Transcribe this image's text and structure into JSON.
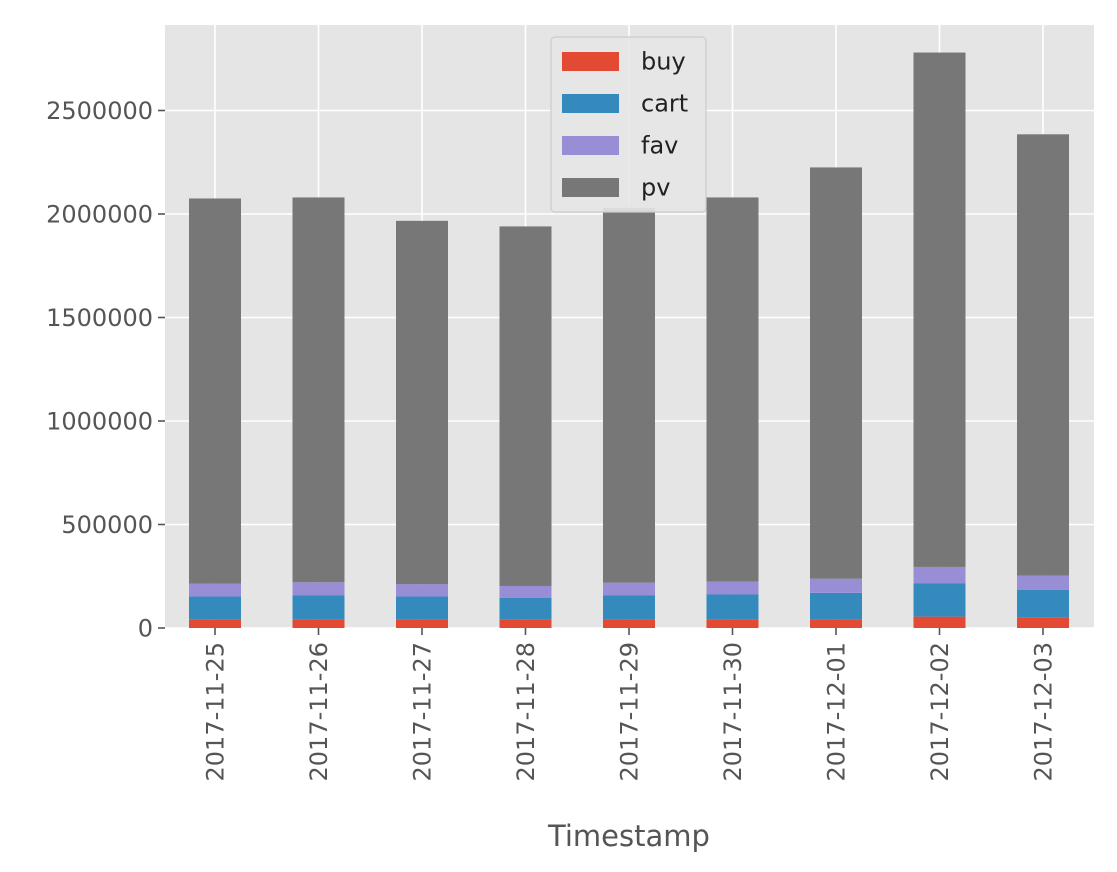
{
  "chart_data": {
    "type": "bar",
    "stacked": true,
    "categories": [
      "2017-11-25",
      "2017-11-26",
      "2017-11-27",
      "2017-11-28",
      "2017-11-29",
      "2017-11-30",
      "2017-12-01",
      "2017-12-02",
      "2017-12-03"
    ],
    "series": [
      {
        "name": "buy",
        "color": "#E24A33",
        "values": [
          40000,
          42000,
          42000,
          40000,
          42000,
          42000,
          42000,
          55000,
          52000
        ]
      },
      {
        "name": "cart",
        "color": "#348ABD",
        "values": [
          112000,
          115000,
          110000,
          105000,
          115000,
          120000,
          128000,
          160000,
          133000
        ]
      },
      {
        "name": "fav",
        "color": "#988ED5",
        "values": [
          62000,
          64000,
          60000,
          58000,
          62000,
          62000,
          68000,
          80000,
          68000
        ]
      },
      {
        "name": "pv",
        "color": "#777777",
        "values": [
          1861000,
          1859000,
          1755000,
          1737000,
          1811000,
          1856000,
          1987000,
          2485000,
          2132000
        ]
      }
    ],
    "title": "",
    "xlabel": "Timestamp",
    "ylabel": "",
    "ylim": [
      0,
      2900000
    ],
    "yticks": [
      0,
      500000,
      1000000,
      1500000,
      2000000,
      2500000
    ],
    "ytick_labels": [
      "0",
      "500000",
      "1000000",
      "1500000",
      "2000000",
      "2500000"
    ],
    "grid": true,
    "legend_position": "upper-center",
    "style": "ggplot"
  }
}
